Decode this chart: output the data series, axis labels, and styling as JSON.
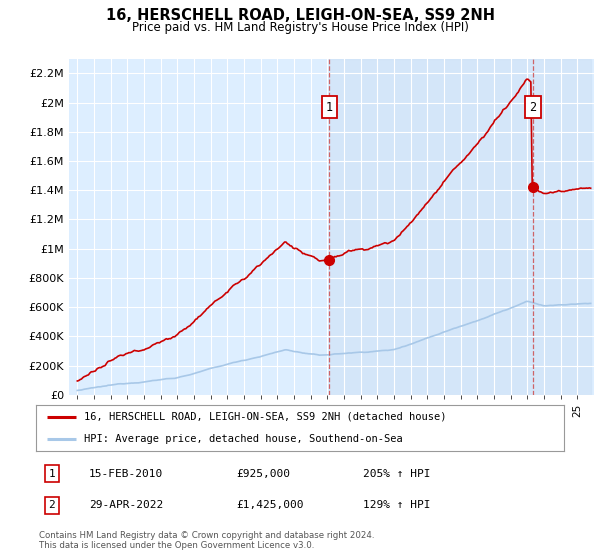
{
  "title": "16, HERSCHELL ROAD, LEIGH-ON-SEA, SS9 2NH",
  "subtitle": "Price paid vs. HM Land Registry's House Price Index (HPI)",
  "ylabel_ticks": [
    "£0",
    "£200K",
    "£400K",
    "£600K",
    "£800K",
    "£1M",
    "£1.2M",
    "£1.4M",
    "£1.6M",
    "£1.8M",
    "£2M",
    "£2.2M"
  ],
  "ylabel_values": [
    0,
    200000,
    400000,
    600000,
    800000,
    1000000,
    1200000,
    1400000,
    1600000,
    1800000,
    2000000,
    2200000
  ],
  "ylim": [
    0,
    2300000
  ],
  "hpi_color": "#a8c8e8",
  "price_color": "#cc0000",
  "marker1_year": 2010.12,
  "marker1_price": 925000,
  "marker2_year": 2022.33,
  "marker2_price": 1425000,
  "legend_price_label": "16, HERSCHELL ROAD, LEIGH-ON-SEA, SS9 2NH (detached house)",
  "legend_hpi_label": "HPI: Average price, detached house, Southend-on-Sea",
  "annotation1_label": "1",
  "annotation2_label": "2",
  "table_rows": [
    {
      "num": "1",
      "date": "15-FEB-2010",
      "price": "£925,000",
      "hpi": "205% ↑ HPI"
    },
    {
      "num": "2",
      "date": "29-APR-2022",
      "price": "£1,425,000",
      "hpi": "129% ↑ HPI"
    }
  ],
  "footer": "Contains HM Land Registry data © Crown copyright and database right 2024.\nThis data is licensed under the Open Government Licence v3.0.",
  "background_color": "#ffffff",
  "plot_bg_color": "#ddeeff",
  "grid_color": "#ffffff",
  "shade_color": "#cce0f5"
}
